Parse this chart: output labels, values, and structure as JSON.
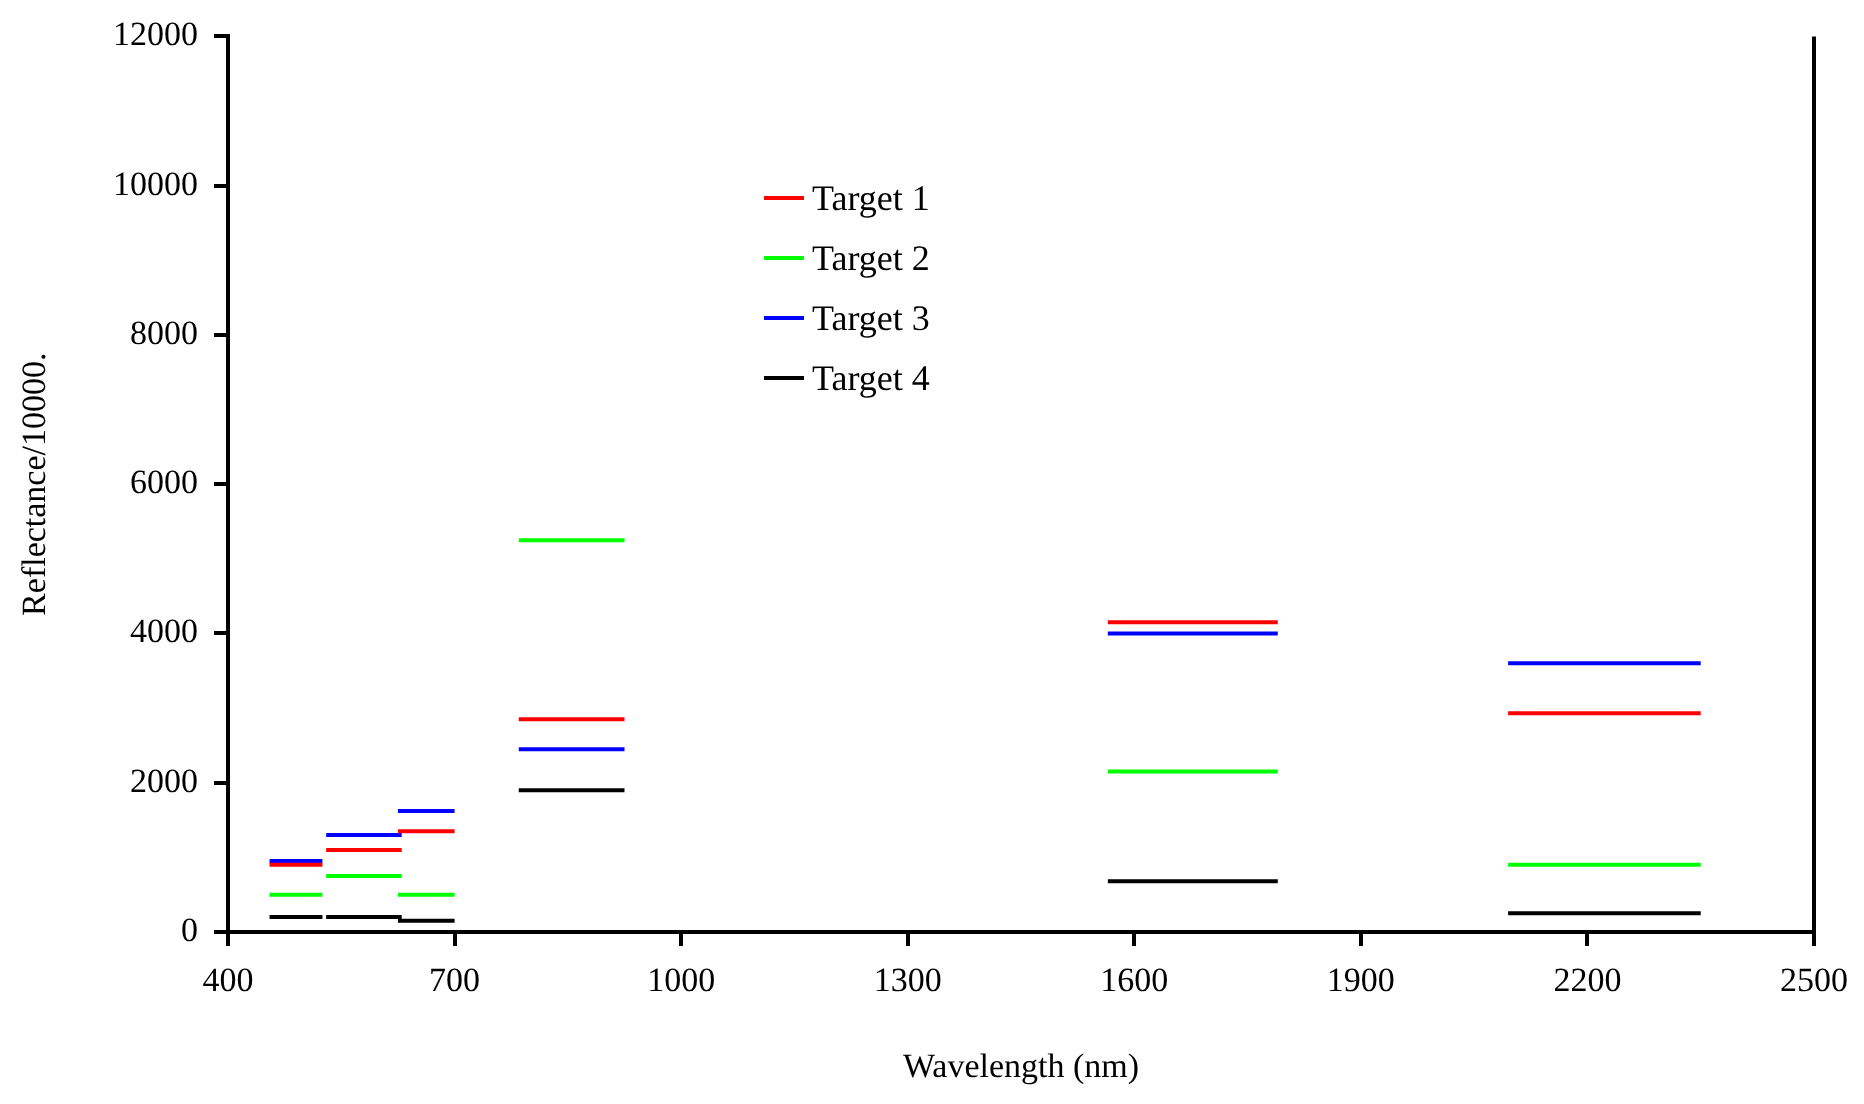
{
  "chart_data": {
    "type": "line",
    "xlabel": "Wavelength (nm)",
    "ylabel": "Reflectance/10000.",
    "xlim": [
      400,
      2500
    ],
    "xticks": [
      400,
      700,
      1000,
      1300,
      1600,
      1900,
      2200,
      2500
    ],
    "ylim": [
      0,
      12000
    ],
    "yticks": [
      0,
      2000,
      4000,
      6000,
      8000,
      10000,
      12000
    ],
    "grid": false,
    "legend": "top",
    "marker": "none",
    "line_style": "solid",
    "series": [
      {
        "name": "Target 1",
        "color": "#ff0000",
        "x": [
          455,
          525,
          null,
          530,
          630,
          null,
          625,
          700,
          null,
          785,
          925,
          null,
          1565,
          1790,
          null,
          2095,
          2350
        ],
        "values": [
          900,
          900,
          null,
          1100,
          1100,
          null,
          1350,
          1350,
          null,
          2850,
          2850,
          null,
          4150,
          4150,
          null,
          2930,
          2930
        ]
      },
      {
        "name": "Target 2",
        "color": "#00ff00",
        "x": [
          455,
          525,
          null,
          530,
          630,
          null,
          625,
          700,
          null,
          785,
          925,
          null,
          1565,
          1790,
          null,
          2095,
          2350
        ],
        "values": [
          500,
          500,
          null,
          750,
          750,
          null,
          500,
          500,
          null,
          5250,
          5250,
          null,
          2150,
          2150,
          null,
          900,
          900
        ]
      },
      {
        "name": "Target 3",
        "color": "#0000ff",
        "x": [
          455,
          525,
          null,
          530,
          630,
          null,
          625,
          700,
          null,
          785,
          925,
          null,
          1565,
          1790,
          null,
          2095,
          2350
        ],
        "values": [
          950,
          950,
          null,
          1300,
          1300,
          null,
          1620,
          1620,
          null,
          2450,
          2450,
          null,
          4000,
          4000,
          null,
          3600,
          3600
        ]
      },
      {
        "name": "Target 4",
        "color": "#000000",
        "x": [
          455,
          525,
          null,
          530,
          630,
          null,
          625,
          700,
          null,
          785,
          925,
          null,
          1565,
          1790,
          null,
          2095,
          2350
        ],
        "values": [
          200,
          200,
          null,
          200,
          200,
          null,
          150,
          150,
          null,
          1900,
          1900,
          null,
          680,
          680,
          null,
          250,
          250
        ]
      }
    ]
  }
}
